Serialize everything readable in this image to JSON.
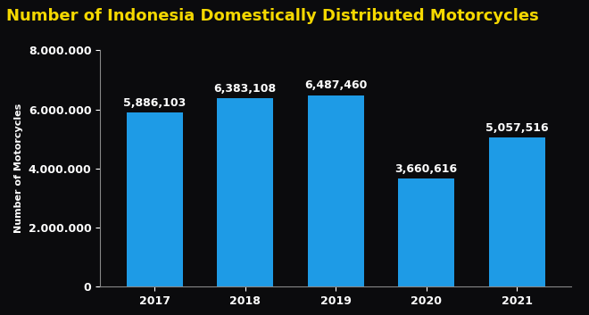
{
  "chart_data": {
    "type": "bar",
    "title": "Number of Indonesia Domestically Distributed Motorcycles",
    "y_label": "Number of Motorcycles",
    "categories": [
      "2017",
      "2018",
      "2019",
      "2020",
      "2021"
    ],
    "values": [
      5886103,
      6383108,
      6487460,
      3660616,
      5057516
    ],
    "value_labels": [
      "5,886,103",
      "6,383,108",
      "6,487,460",
      "3,660,616",
      "5,057,516"
    ],
    "color": "#1e9be6",
    "ylim": [
      0,
      8000000
    ],
    "yticks": [
      0,
      {
        "value": 2000000,
        "label": "2.000.000"
      },
      {
        "value": 4000000,
        "label": "4.000.000"
      },
      {
        "value": 6000000,
        "label": "6.000.000"
      },
      {
        "value": 8000000,
        "label": "8.000.000"
      }
    ],
    "data_labels": true,
    "grid": false
  }
}
